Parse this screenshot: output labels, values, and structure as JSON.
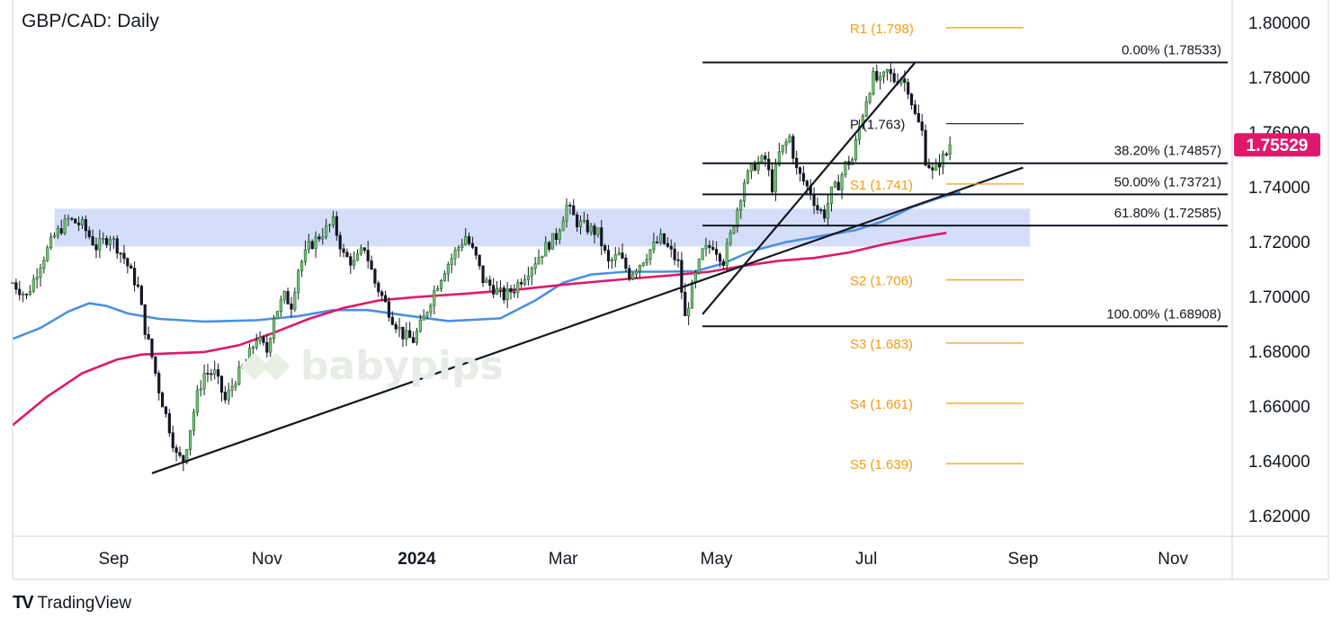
{
  "header": {
    "title": "GBP/CAD: Daily"
  },
  "watermark": {
    "text": "babypips"
  },
  "footer": {
    "logo": "TV",
    "brand": "TradingView"
  },
  "colors": {
    "candle_up": "#2e7d32",
    "candle_down": "#131722",
    "ma_blue": "#4a90e2",
    "ma_pink": "#e0186b",
    "pivot": "#f39c12",
    "zone": "#c7d3f7",
    "price_tag": "#e0186b"
  },
  "chart_data": {
    "type": "candlestick",
    "symbol": "GBP/CAD",
    "timeframe": "Daily",
    "y_axis": {
      "ylim": [
        1.6125,
        1.8055
      ],
      "ticks": [
        "1.80000",
        "1.78000",
        "1.76000",
        "1.74000",
        "1.72000",
        "1.70000",
        "1.68000",
        "1.66000",
        "1.64000",
        "1.62000"
      ],
      "tick_values": [
        1.8,
        1.78,
        1.76,
        1.74,
        1.72,
        1.7,
        1.68,
        1.66,
        1.64,
        1.62
      ]
    },
    "x_axis": {
      "labels": [
        "Sep",
        "Nov",
        "2024",
        "Mar",
        "May",
        "Jul",
        "Sep",
        "Nov"
      ],
      "label_day_index": [
        29,
        73,
        116,
        158,
        202,
        245,
        290,
        333
      ],
      "bold": [
        false,
        false,
        true,
        false,
        false,
        false,
        false,
        false
      ]
    },
    "current_price": {
      "value": 1.75529,
      "label": "1.75529"
    },
    "close_path": [
      [
        0,
        1.705
      ],
      [
        4,
        1.7
      ],
      [
        8,
        1.712
      ],
      [
        12,
        1.722
      ],
      [
        16,
        1.728
      ],
      [
        20,
        1.726
      ],
      [
        24,
        1.718
      ],
      [
        28,
        1.722
      ],
      [
        32,
        1.714
      ],
      [
        36,
        1.703
      ],
      [
        38,
        1.688
      ],
      [
        40,
        1.678
      ],
      [
        42,
        1.666
      ],
      [
        45,
        1.652
      ],
      [
        47,
        1.642
      ],
      [
        49,
        1.64
      ],
      [
        51,
        1.652
      ],
      [
        53,
        1.664
      ],
      [
        55,
        1.672
      ],
      [
        58,
        1.672
      ],
      [
        61,
        1.662
      ],
      [
        64,
        1.67
      ],
      [
        67,
        1.676
      ],
      [
        70,
        1.685
      ],
      [
        73,
        1.68
      ],
      [
        75,
        1.693
      ],
      [
        78,
        1.7
      ],
      [
        80,
        1.697
      ],
      [
        82,
        1.71
      ],
      [
        85,
        1.718
      ],
      [
        88,
        1.722
      ],
      [
        92,
        1.727
      ],
      [
        95,
        1.715
      ],
      [
        98,
        1.712
      ],
      [
        101,
        1.718
      ],
      [
        104,
        1.705
      ],
      [
        106,
        1.7
      ],
      [
        109,
        1.692
      ],
      [
        112,
        1.686
      ],
      [
        115,
        1.684
      ],
      [
        118,
        1.692
      ],
      [
        121,
        1.702
      ],
      [
        124,
        1.71
      ],
      [
        127,
        1.716
      ],
      [
        130,
        1.722
      ],
      [
        133,
        1.714
      ],
      [
        135,
        1.706
      ],
      [
        138,
        1.703
      ],
      [
        141,
        1.7
      ],
      [
        144,
        1.703
      ],
      [
        147,
        1.708
      ],
      [
        150,
        1.713
      ],
      [
        153,
        1.718
      ],
      [
        156,
        1.722
      ],
      [
        159,
        1.733
      ],
      [
        162,
        1.727
      ],
      [
        165,
        1.725
      ],
      [
        168,
        1.723
      ],
      [
        171,
        1.712
      ],
      [
        174,
        1.715
      ],
      [
        177,
        1.708
      ],
      [
        180,
        1.712
      ],
      [
        183,
        1.717
      ],
      [
        186,
        1.721
      ],
      [
        189,
        1.716
      ],
      [
        191,
        1.712
      ],
      [
        193,
        1.692
      ],
      [
        195,
        1.703
      ],
      [
        198,
        1.716
      ],
      [
        201,
        1.719
      ],
      [
        204,
        1.713
      ],
      [
        206,
        1.722
      ],
      [
        208,
        1.732
      ],
      [
        210,
        1.742
      ],
      [
        213,
        1.748
      ],
      [
        216,
        1.75
      ],
      [
        218,
        1.74
      ],
      [
        220,
        1.752
      ],
      [
        223,
        1.758
      ],
      [
        225,
        1.746
      ],
      [
        227,
        1.742
      ],
      [
        229,
        1.738
      ],
      [
        231,
        1.732
      ],
      [
        233,
        1.73
      ],
      [
        235,
        1.738
      ],
      [
        237,
        1.741
      ],
      [
        239,
        1.748
      ],
      [
        241,
        1.75
      ],
      [
        243,
        1.762
      ],
      [
        245,
        1.772
      ],
      [
        247,
        1.78
      ],
      [
        249,
        1.778
      ],
      [
        251,
        1.782
      ],
      [
        253,
        1.779
      ],
      [
        255,
        1.78
      ],
      [
        257,
        1.776
      ],
      [
        259,
        1.766
      ],
      [
        261,
        1.76
      ],
      [
        262,
        1.75
      ],
      [
        263,
        1.748
      ],
      [
        264,
        1.745
      ],
      [
        266,
        1.749
      ],
      [
        268,
        1.752
      ],
      [
        269,
        1.755
      ]
    ],
    "moving_averages": [
      {
        "name": "",
        "color": "#4a90e2",
        "points": [
          [
            0,
            1.6845
          ],
          [
            8,
            1.6885
          ],
          [
            16,
            1.6945
          ],
          [
            22,
            1.6975
          ],
          [
            27,
            1.6965
          ],
          [
            33,
            1.6938
          ],
          [
            42,
            1.6918
          ],
          [
            55,
            1.6908
          ],
          [
            70,
            1.6913
          ],
          [
            82,
            1.6928
          ],
          [
            92,
            1.695
          ],
          [
            102,
            1.695
          ],
          [
            112,
            1.6932
          ],
          [
            125,
            1.691
          ],
          [
            140,
            1.692
          ],
          [
            150,
            1.6985
          ],
          [
            158,
            1.705
          ],
          [
            166,
            1.708
          ],
          [
            176,
            1.709
          ],
          [
            186,
            1.709
          ],
          [
            196,
            1.7092
          ],
          [
            204,
            1.712
          ],
          [
            212,
            1.7165
          ],
          [
            222,
            1.7198
          ],
          [
            232,
            1.722
          ],
          [
            242,
            1.7242
          ],
          [
            250,
            1.7275
          ],
          [
            258,
            1.7325
          ],
          [
            266,
            1.736
          ],
          [
            272,
            1.738
          ]
        ]
      },
      {
        "name": "",
        "color": "#e0186b",
        "points": [
          [
            0,
            1.653
          ],
          [
            10,
            1.6635
          ],
          [
            20,
            1.672
          ],
          [
            30,
            1.677
          ],
          [
            37,
            1.6788
          ],
          [
            45,
            1.6792
          ],
          [
            55,
            1.6797
          ],
          [
            65,
            1.6822
          ],
          [
            75,
            1.6868
          ],
          [
            85,
            1.6918
          ],
          [
            95,
            1.6958
          ],
          [
            105,
            1.6985
          ],
          [
            115,
            1.6997
          ],
          [
            130,
            1.701
          ],
          [
            145,
            1.7025
          ],
          [
            160,
            1.7045
          ],
          [
            175,
            1.7062
          ],
          [
            190,
            1.7078
          ],
          [
            200,
            1.709
          ],
          [
            210,
            1.7112
          ],
          [
            220,
            1.713
          ],
          [
            230,
            1.714
          ],
          [
            240,
            1.716
          ],
          [
            250,
            1.719
          ],
          [
            260,
            1.7215
          ],
          [
            268,
            1.7232
          ]
        ]
      }
    ],
    "support_zone": {
      "from_day": 12,
      "to_day": 292,
      "low": 1.7182,
      "high": 1.732
    },
    "trendlines": [
      {
        "from": [
          40,
          1.6355
        ],
        "to": [
          290,
          1.747
        ]
      },
      {
        "from": [
          198,
          1.6935
        ],
        "to": [
          259,
          1.7853
        ]
      }
    ],
    "fib_levels": [
      {
        "label": "0.00% (1.78533)",
        "value": 1.78533
      },
      {
        "label": "38.20% (1.74857)",
        "value": 1.74857
      },
      {
        "label": "50.00% (1.73721)",
        "value": 1.73721
      },
      {
        "label": "61.80% (1.72585)",
        "value": 1.72585
      },
      {
        "label": "100.00% (1.68908)",
        "value": 1.68908
      }
    ],
    "pivots": [
      {
        "label": "R1 (1.798)",
        "value": 1.798,
        "color": "#f39c12"
      },
      {
        "label": "P (1.763)",
        "value": 1.763,
        "color": "#131722"
      },
      {
        "label": "S1 (1.741)",
        "value": 1.741,
        "color": "#f39c12"
      },
      {
        "label": "S2 (1.706)",
        "value": 1.706,
        "color": "#f39c12"
      },
      {
        "label": "S3 (1.683)",
        "value": 1.683,
        "color": "#f39c12"
      },
      {
        "label": "S4 (1.661)",
        "value": 1.661,
        "color": "#f39c12"
      },
      {
        "label": "S5 (1.639)",
        "value": 1.639,
        "color": "#f39c12"
      }
    ]
  }
}
